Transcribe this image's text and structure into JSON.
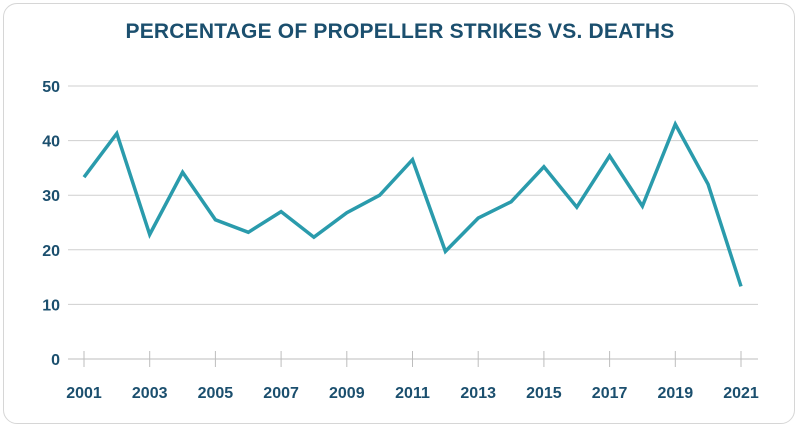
{
  "chart_data": {
    "type": "line",
    "title": "PERCENTAGE OF PROPELLER STRIKES VS. DEATHS",
    "xlabel": "",
    "ylabel": "",
    "ylim": [
      0,
      50
    ],
    "yticks": [
      0,
      10,
      20,
      30,
      40,
      50
    ],
    "xticks": [
      2001,
      2003,
      2005,
      2007,
      2009,
      2011,
      2013,
      2015,
      2017,
      2019,
      2021
    ],
    "grid": true,
    "colors": {
      "line": "#2a9bac",
      "grid": "#cfcfcf",
      "text": "#1b4f6e"
    },
    "series": [
      {
        "x": [
          2001,
          2002,
          2003,
          2004,
          2005,
          2006,
          2007,
          2008,
          2009,
          2010,
          2011,
          2012,
          2013,
          2014,
          2015,
          2016,
          2017,
          2018,
          2019,
          2020,
          2021
        ],
        "values": [
          33.3,
          41.3,
          22.8,
          34.2,
          25.5,
          23.2,
          27.0,
          22.3,
          26.8,
          30.0,
          36.5,
          19.7,
          25.8,
          28.8,
          35.2,
          27.8,
          37.2,
          28.0,
          43.0,
          32.0,
          13.3
        ]
      }
    ]
  }
}
